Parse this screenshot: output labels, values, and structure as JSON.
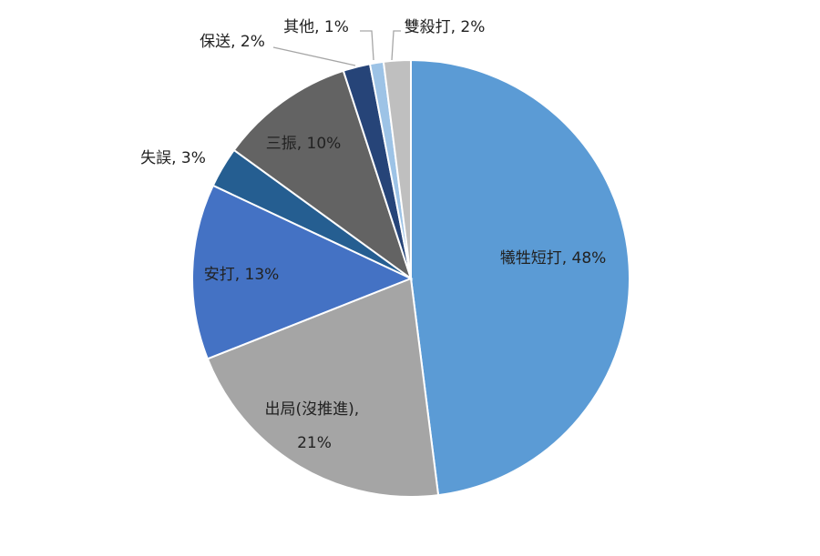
{
  "chart_data": {
    "type": "pie",
    "values": [
      48,
      21,
      13,
      3,
      10,
      2,
      1,
      2
    ],
    "value_labels": [
      "犧牲短打, 48%",
      "出局(沒推進), 21%",
      "安打, 13%",
      "失誤, 3%",
      "三振, 10%",
      "保送, 2%",
      "其他, 1%",
      "雙殺打, 2%"
    ],
    "colors": [
      "#5b9bd5",
      "#a5a5a5",
      "#4472c4",
      "#255e91",
      "#636363",
      "#264478",
      "#9dc3e6",
      "#bfbfbf"
    ]
  }
}
